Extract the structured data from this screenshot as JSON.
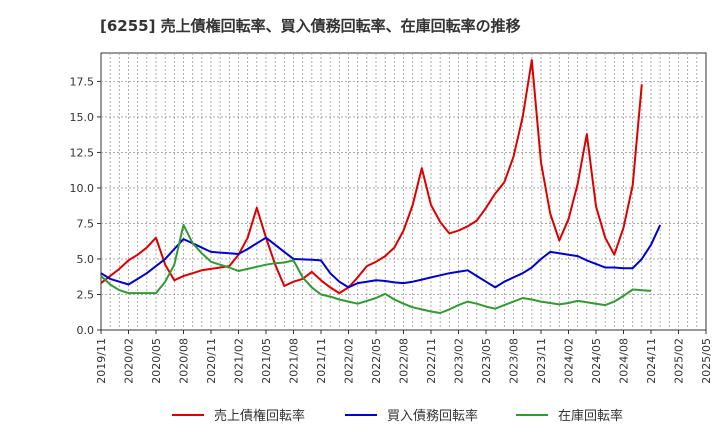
{
  "chart_data": {
    "type": "line",
    "title": "[6255]  売上債権回転率、買入債務回転率、在庫回転率の推移",
    "xlabel": "",
    "ylabel": "",
    "ylim": [
      0,
      19.5
    ],
    "yticks": [
      "0.0",
      "2.5",
      "5.0",
      "7.5",
      "10.0",
      "12.5",
      "15.0",
      "17.5"
    ],
    "ytick_values": [
      0,
      2.5,
      5,
      7.5,
      10,
      12.5,
      15,
      17.5
    ],
    "xtick_labels": [
      "2019/11",
      "2020/02",
      "2020/05",
      "2020/08",
      "2020/11",
      "2021/02",
      "2021/05",
      "2021/08",
      "2021/11",
      "2022/02",
      "2022/05",
      "2022/08",
      "2022/11",
      "2023/02",
      "2023/05",
      "2023/08",
      "2023/11",
      "2024/02",
      "2024/05",
      "2024/08",
      "2024/11",
      "2025/02",
      "2025/05"
    ],
    "x_months_count": 67,
    "legend_position": "bottom",
    "grid": true,
    "series": [
      {
        "name": "売上債権回転率",
        "color": "#dd0000",
        "values": [
          3.3,
          3.8,
          4.3,
          4.9,
          5.3,
          5.8,
          6.5,
          4.6,
          3.5,
          3.8,
          4.0,
          4.2,
          4.3,
          4.4,
          4.5,
          5.3,
          6.5,
          8.6,
          6.5,
          4.6,
          3.1,
          3.4,
          3.6,
          4.1,
          3.5,
          3.0,
          2.6,
          3.0,
          3.7,
          4.5,
          4.8,
          5.2,
          5.8,
          7.0,
          8.8,
          11.4,
          8.8,
          7.6,
          6.8,
          7.0,
          7.3,
          7.7,
          8.6,
          9.6,
          10.4,
          12.2,
          15.0,
          19.0,
          11.8,
          8.2,
          6.3,
          7.8,
          10.3,
          13.8,
          8.7,
          6.5,
          5.3,
          7.2,
          10.2,
          17.3
        ]
      },
      {
        "name": "買入債務回転率",
        "color": "#0000cc",
        "values": [
          4.0,
          3.6,
          3.4,
          3.2,
          3.6,
          4.0,
          4.5,
          5.0,
          5.7,
          6.4,
          6.1,
          5.8,
          5.5,
          5.45,
          5.4,
          5.35,
          5.7,
          6.1,
          6.5,
          6.0,
          5.5,
          5.0,
          4.97,
          4.95,
          4.9,
          4.0,
          3.4,
          3.0,
          3.3,
          3.4,
          3.5,
          3.45,
          3.35,
          3.3,
          3.4,
          3.55,
          3.7,
          3.85,
          4.0,
          4.1,
          4.2,
          3.8,
          3.4,
          3.0,
          3.4,
          3.7,
          4.0,
          4.4,
          5.0,
          5.5,
          5.4,
          5.3,
          5.2,
          4.9,
          4.65,
          4.4,
          4.4,
          4.35,
          4.35,
          5.0,
          6.0,
          7.4
        ]
      },
      {
        "name": "在庫回転率",
        "color": "#339933",
        "values": [
          3.8,
          3.2,
          2.8,
          2.6,
          2.6,
          2.6,
          2.6,
          3.4,
          4.6,
          7.4,
          6.1,
          5.4,
          4.8,
          4.6,
          4.4,
          4.15,
          4.3,
          4.45,
          4.6,
          4.7,
          4.75,
          4.9,
          3.7,
          3.0,
          2.5,
          2.35,
          2.15,
          2.0,
          1.85,
          2.05,
          2.25,
          2.55,
          2.15,
          1.85,
          1.6,
          1.45,
          1.3,
          1.2,
          1.45,
          1.75,
          2.0,
          1.85,
          1.65,
          1.5,
          1.75,
          2.0,
          2.25,
          2.15,
          2.0,
          1.9,
          1.8,
          1.9,
          2.05,
          1.95,
          1.85,
          1.75,
          2.0,
          2.4,
          2.85,
          2.8,
          2.75
        ]
      }
    ]
  }
}
